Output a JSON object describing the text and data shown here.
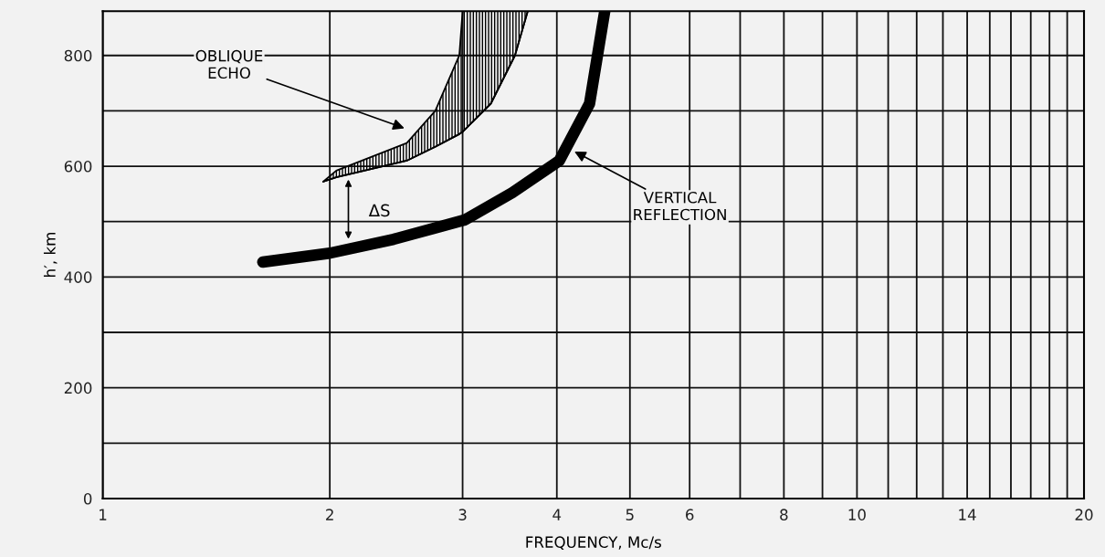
{
  "chart_data": {
    "type": "line",
    "xlabel": "FREQUENCY, Mc/s",
    "ylabel": "h′, km",
    "log": "x",
    "grid": true,
    "line_style": "solid",
    "xlim": [
      1,
      20
    ],
    "ylim": [
      0,
      880
    ],
    "xticks": [
      1,
      2,
      3,
      4,
      5,
      6,
      {
        "value": 7,
        "label": null
      },
      8,
      {
        "value": 9,
        "label": null
      },
      10,
      {
        "value": 11,
        "label": null
      },
      {
        "value": 12,
        "label": null
      },
      {
        "value": 13,
        "label": null
      },
      14,
      {
        "value": 15,
        "label": null
      },
      {
        "value": 16,
        "label": null
      },
      {
        "value": 17,
        "label": null
      },
      {
        "value": 18,
        "label": null
      },
      {
        "value": 19,
        "label": null
      },
      20
    ],
    "yticks": [
      0,
      {
        "value": 100,
        "label": null
      },
      200,
      {
        "value": 300,
        "label": null
      },
      400,
      {
        "value": 500,
        "label": null
      },
      600,
      {
        "value": 700,
        "label": null
      },
      800
    ],
    "series": [
      {
        "color": "#000000",
        "x": [
          1.63,
          2.0,
          2.43,
          3.02,
          3.49,
          4.03,
          4.42,
          4.63
        ],
        "values": [
          427,
          443,
          468,
          503,
          552,
          610,
          713,
          880
        ]
      },
      {
        "color": "#000000",
        "x": [
          1.96,
          2.04,
          2.53,
          2.76,
          2.97,
          3.0,
          3.27,
          3.52,
          3.66
        ],
        "values": [
          572,
          580,
          610,
          635,
          658,
          662,
          713,
          800,
          880
        ],
        "lower": [
          572,
          580,
          610,
          635,
          658,
          662,
          713,
          800,
          880
        ],
        "upper": [
          572,
          592,
          642,
          700,
          800,
          880,
          880,
          880,
          880
        ]
      }
    ],
    "annotations": [
      "OBLIQUE\nECHO",
      "VERTICAL\nREFLECTION",
      "ΔS"
    ]
  }
}
